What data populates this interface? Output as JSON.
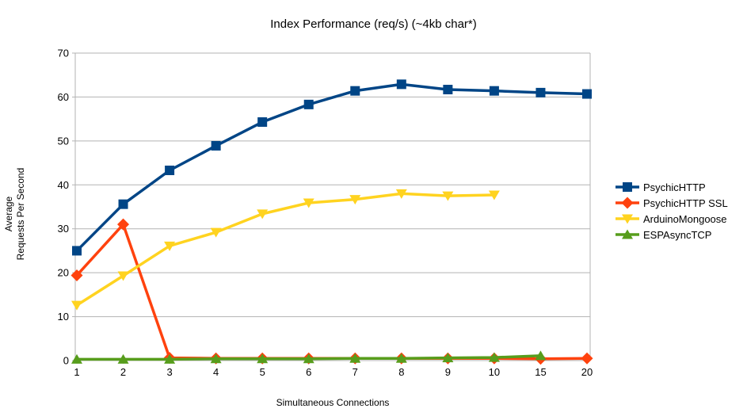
{
  "chart_data": {
    "type": "line",
    "title": "Index Performance (req/s) (~4kb char*)",
    "xlabel": "Simultaneous Connections",
    "ylabel": "Average Requests Per Second",
    "ylabel_lines": [
      "Average",
      "Requests Per Second"
    ],
    "categories": [
      "1",
      "2",
      "3",
      "4",
      "5",
      "6",
      "7",
      "8",
      "9",
      "10",
      "15",
      "20"
    ],
    "y_ticks": [
      0,
      10,
      20,
      30,
      40,
      50,
      60,
      70
    ],
    "ylim": [
      0,
      70
    ],
    "grid": "horizontal",
    "grid_color": "#b3b3b3",
    "axis_color": "#b3b3b3",
    "legend_position": "right",
    "series": [
      {
        "name": "PsychicHTTP",
        "color": "#004586",
        "marker": "square",
        "values": [
          25.0,
          35.6,
          43.3,
          48.9,
          54.3,
          58.3,
          61.4,
          62.9,
          61.7,
          61.4,
          61.0,
          60.7
        ]
      },
      {
        "name": "PsychicHTTP SSL",
        "color": "#FF420E",
        "marker": "diamond",
        "values": [
          19.4,
          31.0,
          0.6,
          0.5,
          0.5,
          0.5,
          0.5,
          0.5,
          0.5,
          0.5,
          0.4,
          0.5
        ]
      },
      {
        "name": "ArduinoMongoose",
        "color": "#FFD320",
        "marker": "triangle-down",
        "values": [
          12.6,
          19.3,
          26.1,
          29.2,
          33.4,
          35.9,
          36.7,
          38.0,
          37.5,
          37.7
        ]
      },
      {
        "name": "ESPAsyncTCP",
        "color": "#579D1C",
        "marker": "triangle-up",
        "values": [
          0.3,
          0.3,
          0.3,
          0.4,
          0.4,
          0.4,
          0.5,
          0.5,
          0.6,
          0.7,
          1.1
        ]
      }
    ]
  }
}
